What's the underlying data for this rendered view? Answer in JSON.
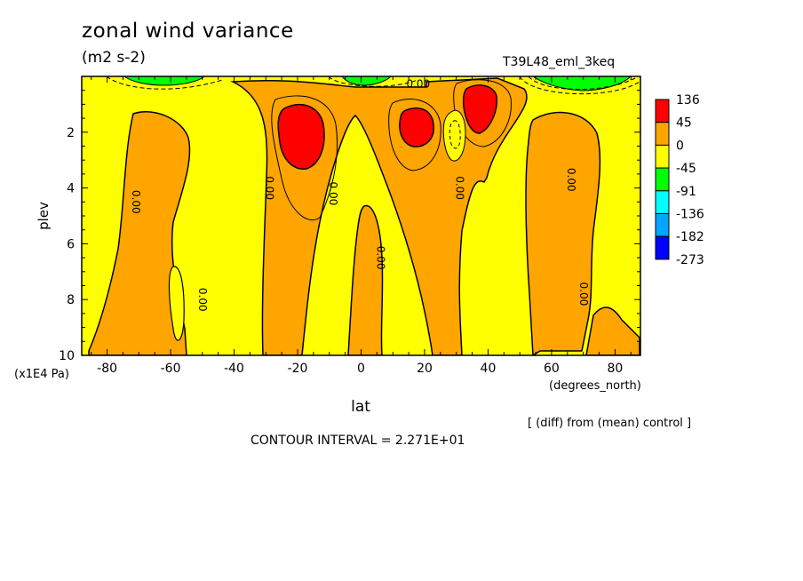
{
  "page": {
    "title": "zonal wind variance",
    "units": "(m2 s-2)",
    "run_label": "T39L48_eml_3keq",
    "contour_interval": "CONTOUR INTERVAL = 2.271E+01",
    "diff_note": "[ (diff) from (mean) control ]",
    "pressure_unit": "(x1E4 Pa)"
  },
  "chart_data": {
    "type": "heatmap",
    "title": "zonal wind variance",
    "subtitle": "(m2 s-2)",
    "xlabel": "lat",
    "xunit": "(degrees_north)",
    "ylabel": "plev",
    "yunit": "(x1E4 Pa)",
    "xlim": [
      -88,
      88
    ],
    "ylim": [
      10,
      0
    ],
    "yaxis_inverted": true,
    "xticks": [
      "-80",
      "-60",
      "-40",
      "-20",
      "0",
      "20",
      "40",
      "60",
      "80"
    ],
    "xtick_values": [
      -80,
      -60,
      -40,
      -20,
      0,
      20,
      40,
      60,
      80
    ],
    "yticks": [
      "2",
      "4",
      "6",
      "8",
      "10"
    ],
    "ytick_values": [
      2,
      4,
      6,
      8,
      10
    ],
    "contour_labels": [
      {
        "text": "0.00",
        "lat": -72,
        "plev": 4.5
      },
      {
        "text": "0.00",
        "lat": -51,
        "plev": 8.0
      },
      {
        "text": "0.00",
        "lat": -30,
        "plev": 4.0
      },
      {
        "text": "0.00",
        "lat": -10,
        "plev": 4.2
      },
      {
        "text": "0.00",
        "lat": 18,
        "plev": 0.4
      },
      {
        "text": "0.00",
        "lat": 5,
        "plev": 6.5
      },
      {
        "text": "0.00",
        "lat": 30,
        "plev": 4.0
      },
      {
        "text": "0.00",
        "lat": 65,
        "plev": 3.7
      },
      {
        "text": "0.00",
        "lat": 69,
        "plev": 7.8
      }
    ],
    "positive_maxima": [
      {
        "lat": -19,
        "plev": 2.0,
        "level": "above 45"
      },
      {
        "lat": 17,
        "plev": 1.9,
        "level": "above 45"
      },
      {
        "lat": 38,
        "plev": 1.1,
        "level": "above 45"
      }
    ],
    "negative_regions": [
      {
        "lat": -75,
        "plev": 0.2,
        "level": "below -45"
      },
      {
        "lat": 0,
        "plev": 0.2,
        "level": "below -45"
      },
      {
        "lat": 75,
        "plev": 0.2,
        "level": "below -45"
      }
    ],
    "colorbar": {
      "labels": [
        "136",
        "45",
        "0",
        "-45",
        "-91",
        "-136",
        "-182",
        "-273"
      ],
      "colors": [
        "#ff0000",
        "#ffa500",
        "#ffff00",
        "#00ff00",
        "#00ffff",
        "#00a5ff",
        "#0000ff"
      ]
    },
    "colors": {
      "positive": "#ffa500",
      "strong_positive": "#ff0000",
      "near_zero": "#ffff00",
      "negative": "#00ff00"
    }
  }
}
